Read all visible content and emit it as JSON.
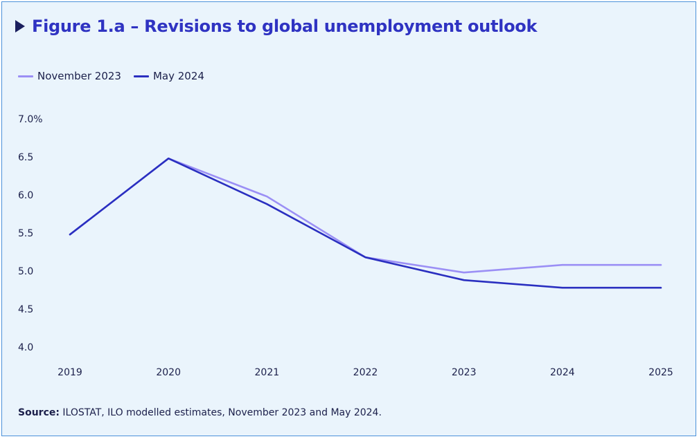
{
  "title": "Figure 1.a – Revisions to global unemployment outlook",
  "icons": {
    "title_marker": "play-triangle-icon"
  },
  "source": {
    "label": "Source:",
    "text": "ILOSTAT, ILO modelled estimates, November 2023 and May 2024."
  },
  "colors": {
    "background": "#eaf4fc",
    "border": "#4a90d9",
    "title": "#2f33c2",
    "series_nov_2023": "#9b8ff5",
    "series_may_2024": "#2a2fc0"
  },
  "chart_data": {
    "type": "line",
    "x": [
      "2019",
      "2020",
      "2021",
      "2022",
      "2023",
      "2024",
      "2025"
    ],
    "y_tick_labels": [
      "7.0%",
      "6.5",
      "6.0",
      "5.5",
      "5.0",
      "4.5",
      "4.0"
    ],
    "ylim": [
      4.0,
      7.0
    ],
    "grid": false,
    "legend_position": "top-left",
    "series": [
      {
        "name": "November 2023",
        "color": "#9b8ff5",
        "values": [
          5.48,
          6.48,
          5.98,
          5.18,
          4.98,
          5.08,
          5.08
        ]
      },
      {
        "name": "May 2024",
        "color": "#2a2fc0",
        "values": [
          5.48,
          6.48,
          5.88,
          5.18,
          4.88,
          4.78,
          4.78
        ]
      }
    ]
  }
}
